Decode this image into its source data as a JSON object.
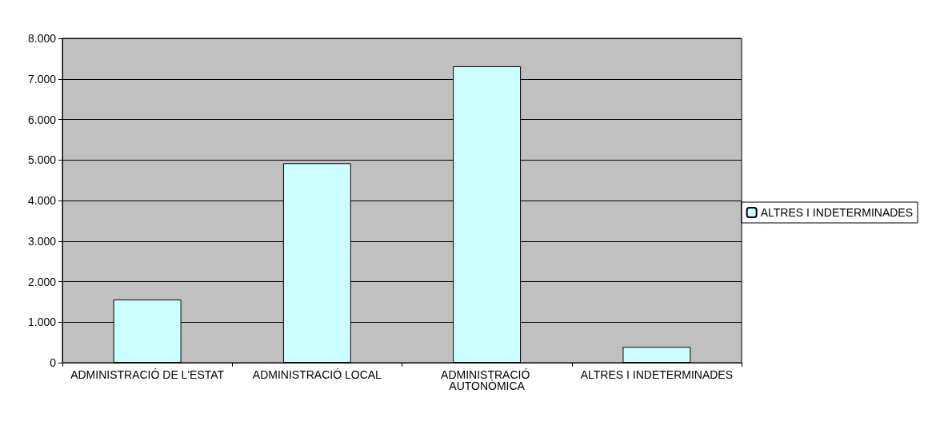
{
  "chart_data": {
    "type": "bar",
    "categories": [
      "ADMINISTRACIÓ DE L'ESTAT",
      "ADMINISTRACIÓ LOCAL",
      "ADMINISTRACIÓ AUTONÒMICA",
      "ALTRES I INDETERMINADES"
    ],
    "series": [
      {
        "name": "ALTRES I INDETERMINADES",
        "color": "#ccffff",
        "values": [
          1560,
          4920,
          7310,
          390
        ]
      }
    ],
    "ylim": [
      0,
      8000
    ],
    "yticks": [
      {
        "value": 0,
        "label": "0"
      },
      {
        "value": 1000,
        "label": "1.000"
      },
      {
        "value": 2000,
        "label": "2.000"
      },
      {
        "value": 3000,
        "label": "3.000"
      },
      {
        "value": 4000,
        "label": "4.000"
      },
      {
        "value": 5000,
        "label": "5.000"
      },
      {
        "value": 6000,
        "label": "6.000"
      },
      {
        "value": 7000,
        "label": "7.000"
      },
      {
        "value": 8000,
        "label": "8.000"
      }
    ],
    "grid": "y",
    "legend": "right"
  }
}
